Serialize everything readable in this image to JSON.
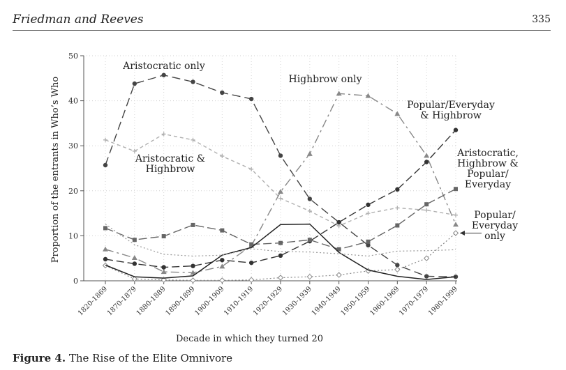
{
  "header": {
    "authors": "Friedman and Reeves",
    "page_number": "335"
  },
  "caption": {
    "label": "Figure 4.",
    "text": "The Rise of the Elite Omnivore"
  },
  "chart_data": {
    "type": "line",
    "xlabel": "Decade in which they turned 20",
    "ylabel": "Proportion of the entrants in Who’s Who",
    "ylim": [
      0,
      50
    ],
    "yticks": [
      0,
      10,
      20,
      30,
      40,
      50
    ],
    "grid": true,
    "categories": [
      "1820-1869",
      "1870-1879",
      "1880-1889",
      "1890-1899",
      "1900-1909",
      "1910-1919",
      "1920-1929",
      "1930-1939",
      "1940-1949",
      "1950-1959",
      "1960-1969",
      "1970-1979",
      "1980-1999"
    ],
    "series": [
      {
        "name": "Aristocratic only",
        "color": "#444444",
        "dash": "12,6",
        "marker": "circle",
        "width": 1.4,
        "values": [
          25.7,
          43.8,
          45.7,
          44.2,
          41.8,
          40.4,
          27.8,
          18.2,
          13.0,
          7.9,
          3.5,
          1.0,
          0.9
        ]
      },
      {
        "name": "Aristocratic & Highbrow",
        "color": "#b0b0b0",
        "dash": "5,4",
        "marker": "plus",
        "width": 1.4,
        "values": [
          31.3,
          28.8,
          32.6,
          31.3,
          27.7,
          24.8,
          18.3,
          15.5,
          12.2,
          15.0,
          16.2,
          15.7,
          14.6
        ]
      },
      {
        "name": "Highbrow only",
        "color": "#888888",
        "dash": "12,5,3,5",
        "marker": "triangle",
        "width": 1.4,
        "values": [
          7.0,
          5.1,
          2.0,
          1.8,
          3.2,
          7.8,
          19.8,
          28.2,
          41.6,
          41.1,
          37.1,
          27.8,
          12.5
        ]
      },
      {
        "name": "Popular/Everyday & Highbrow",
        "color": "#333333",
        "dash": "11,5",
        "marker": "circle",
        "width": 1.4,
        "values": [
          4.8,
          3.8,
          3.0,
          3.3,
          4.6,
          4.0,
          5.6,
          8.8,
          13.0,
          16.9,
          20.3,
          26.4,
          33.5
        ]
      },
      {
        "name": "Aristocratic, Highbrow & Popular/ Everyday",
        "color": "#666666",
        "dash": "12,5",
        "marker": "square",
        "width": 1.4,
        "values": [
          11.7,
          9.1,
          9.9,
          12.4,
          11.2,
          8.1,
          8.4,
          9.1,
          7.0,
          8.7,
          12.3,
          17.0,
          20.4
        ]
      },
      {
        "name": "Popular/ Everyday only",
        "color": "#888888",
        "dash": "2,3",
        "marker": "diamond",
        "width": 1.2,
        "values": [
          3.4,
          0.4,
          0.2,
          0.1,
          0.1,
          0.2,
          0.7,
          0.9,
          1.3,
          2.2,
          2.5,
          5.0,
          10.6
        ]
      },
      {
        "name": "",
        "color": "#222222",
        "dash": "",
        "marker": "none",
        "width": 1.5,
        "values": [
          3.5,
          0.9,
          0.6,
          1.1,
          5.7,
          7.4,
          12.5,
          12.6,
          6.3,
          2.4,
          1.0,
          0.3,
          0.9
        ]
      },
      {
        "name": "",
        "color": "#999999",
        "dash": "2,3",
        "marker": "none",
        "width": 1.2,
        "values": [
          12.6,
          8.0,
          5.9,
          5.5,
          5.7,
          7.1,
          6.5,
          6.4,
          6.0,
          5.5,
          6.6,
          6.7,
          6.9
        ]
      }
    ],
    "annotations": [
      {
        "text": [
          "Aristocratic only"
        ],
        "series": 0
      },
      {
        "text": [
          "Highbrow only"
        ],
        "series": 2
      },
      {
        "text": [
          "Popular/Everyday",
          "& Highbrow"
        ],
        "series": 3
      },
      {
        "text": [
          "Aristocratic &",
          "Highbrow"
        ],
        "series": 1
      },
      {
        "text": [
          "Aristocratic,",
          "Highbrow &",
          "Popular/",
          "Everyday"
        ],
        "series": 4
      },
      {
        "text": [
          "Popular/",
          "Everyday",
          "only"
        ],
        "series": 5,
        "arrow": true
      }
    ]
  }
}
